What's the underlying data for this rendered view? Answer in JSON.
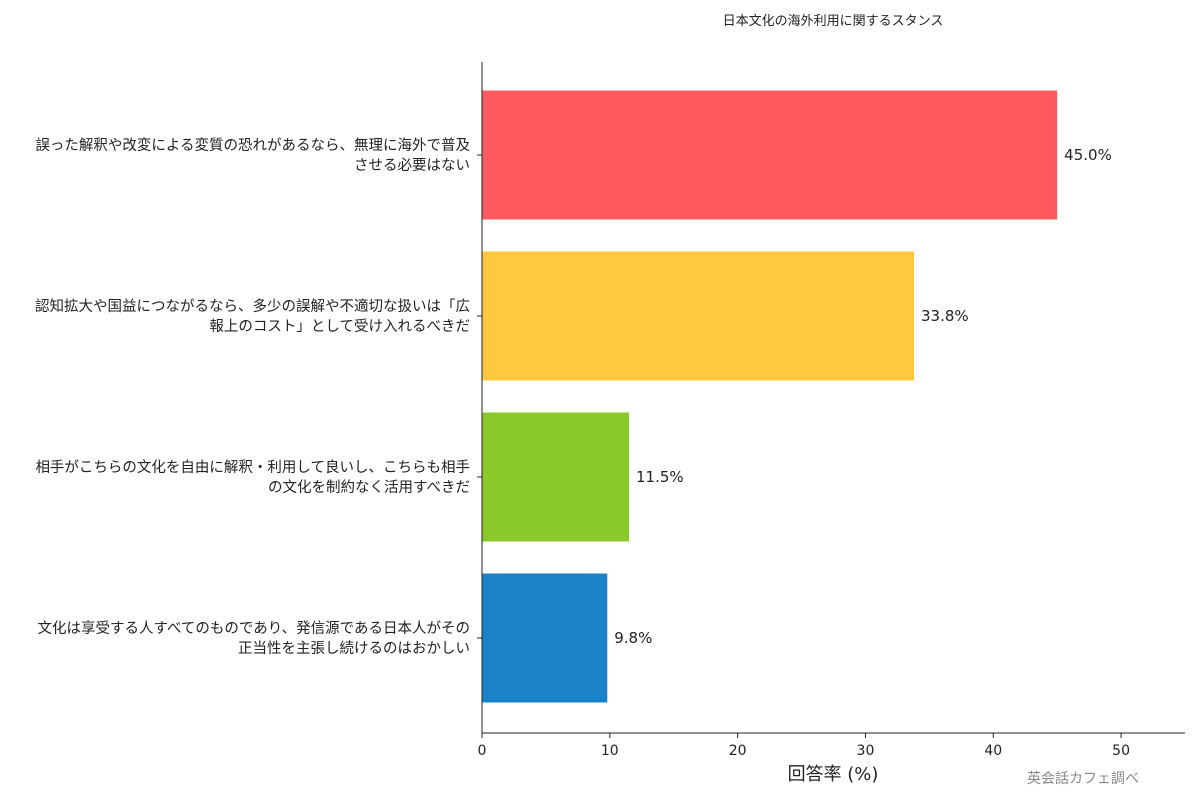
{
  "chart_data": {
    "type": "bar",
    "orientation": "horizontal",
    "title": "日本文化の海外利用に関するスタンス",
    "xlabel": "回答率 (%)",
    "ylabel": "",
    "xlim": [
      0,
      55
    ],
    "xticks": [
      0,
      10,
      20,
      30,
      40,
      50
    ],
    "grid": false,
    "categories": [
      [
        "誤った解釈や改変による変質の恐れがあるなら、無理に海外で普及",
        "させる必要はない"
      ],
      [
        "認知拡大や国益につながるなら、多少の誤解や不適切な扱いは「広",
        "報上のコスト」として受け入れるべきだ"
      ],
      [
        "相手がこちらの文化を自由に解釈・利用して良いし、こちらも相手",
        "の文化を制約なく活用すべきだ"
      ],
      [
        "文化は享受する人すべてのものであり、発信源である日本人がその",
        "正当性を主張し続けるのはおかしい"
      ]
    ],
    "values": [
      45.0,
      33.8,
      11.5,
      9.8
    ],
    "value_labels": [
      "45.0%",
      "33.8%",
      "11.5%",
      "9.8%"
    ],
    "colors": [
      "#ff5a5f",
      "#ffc83d",
      "#8bc82a",
      "#1a82c8"
    ],
    "source": "英会話カフェ調べ"
  }
}
